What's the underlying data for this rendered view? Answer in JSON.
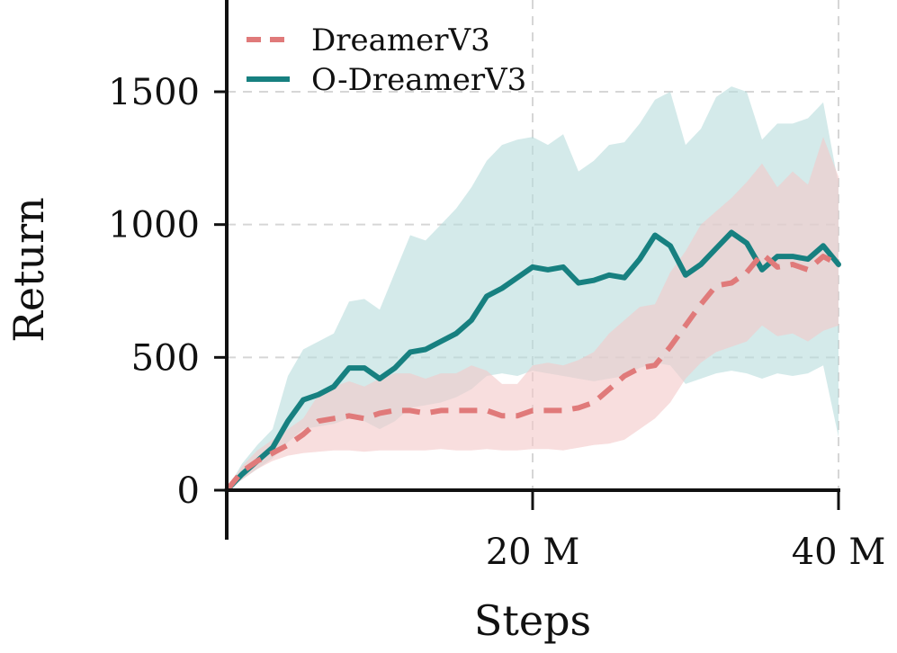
{
  "chart_data": {
    "type": "line",
    "title": "",
    "xlabel": "Steps",
    "ylabel": "Return",
    "xlim": [
      0,
      40
    ],
    "ylim": [
      -180,
      1830
    ],
    "x_unit": "M steps",
    "x_ticks": [
      {
        "value": 20,
        "label": "20 M"
      },
      {
        "value": 40,
        "label": "40 M"
      }
    ],
    "y_ticks": [
      {
        "value": 0,
        "label": "0"
      },
      {
        "value": 500,
        "label": "500"
      },
      {
        "value": 1000,
        "label": "1000"
      },
      {
        "value": 1500,
        "label": "1500"
      }
    ],
    "grid": true,
    "legend_position": "top-left",
    "series": [
      {
        "name": "DreamerV3",
        "color": "#e07a7a",
        "band_color": "#f4c8c8",
        "style": "dashed",
        "x": [
          0,
          1,
          2,
          3,
          4,
          5,
          6,
          7,
          8,
          9,
          10,
          11,
          12,
          13,
          14,
          15,
          16,
          17,
          18,
          19,
          20,
          21,
          22,
          23,
          24,
          25,
          26,
          27,
          28,
          29,
          30,
          31,
          32,
          33,
          34,
          35,
          36,
          37,
          38,
          39,
          40
        ],
        "mean": [
          0,
          70,
          110,
          140,
          170,
          210,
          260,
          270,
          280,
          270,
          290,
          300,
          300,
          290,
          300,
          300,
          300,
          300,
          280,
          280,
          300,
          300,
          300,
          310,
          330,
          380,
          430,
          460,
          470,
          540,
          620,
          700,
          770,
          780,
          820,
          890,
          840,
          850,
          830,
          880,
          850
        ],
        "lower": [
          0,
          40,
          80,
          110,
          130,
          140,
          145,
          150,
          150,
          145,
          150,
          150,
          150,
          150,
          155,
          150,
          150,
          155,
          150,
          150,
          155,
          155,
          150,
          160,
          170,
          175,
          190,
          230,
          270,
          330,
          420,
          480,
          520,
          540,
          560,
          620,
          580,
          590,
          560,
          600,
          620
        ],
        "upper": [
          0,
          90,
          150,
          190,
          230,
          270,
          360,
          390,
          410,
          390,
          420,
          440,
          440,
          420,
          440,
          440,
          470,
          450,
          400,
          400,
          470,
          480,
          470,
          490,
          520,
          590,
          640,
          690,
          700,
          820,
          900,
          1000,
          1050,
          1100,
          1160,
          1230,
          1140,
          1200,
          1150,
          1330,
          1180
        ]
      },
      {
        "name": "O-DreamerV3",
        "color": "#178080",
        "band_color": "#b8dcdc",
        "style": "solid",
        "x": [
          0,
          1,
          2,
          3,
          4,
          5,
          6,
          7,
          8,
          9,
          10,
          11,
          12,
          13,
          14,
          15,
          16,
          17,
          18,
          19,
          20,
          21,
          22,
          23,
          24,
          25,
          26,
          27,
          28,
          29,
          30,
          31,
          32,
          33,
          34,
          35,
          36,
          37,
          38,
          39,
          40
        ],
        "mean": [
          0,
          60,
          110,
          160,
          260,
          340,
          360,
          390,
          460,
          460,
          420,
          460,
          520,
          530,
          560,
          590,
          640,
          730,
          760,
          800,
          840,
          830,
          840,
          780,
          790,
          810,
          800,
          870,
          960,
          920,
          810,
          850,
          910,
          970,
          930,
          830,
          880,
          880,
          870,
          920,
          850
        ],
        "lower": [
          0,
          40,
          80,
          120,
          180,
          230,
          240,
          250,
          270,
          260,
          230,
          260,
          310,
          320,
          330,
          350,
          380,
          430,
          440,
          430,
          450,
          440,
          430,
          420,
          410,
          420,
          430,
          460,
          480,
          470,
          400,
          420,
          440,
          450,
          440,
          420,
          440,
          430,
          440,
          470,
          200
        ],
        "upper": [
          0,
          100,
          170,
          230,
          430,
          530,
          560,
          590,
          710,
          720,
          680,
          820,
          960,
          940,
          1000,
          1060,
          1140,
          1240,
          1300,
          1320,
          1330,
          1300,
          1340,
          1200,
          1240,
          1300,
          1310,
          1380,
          1470,
          1500,
          1300,
          1360,
          1480,
          1520,
          1500,
          1320,
          1380,
          1380,
          1400,
          1460,
          1150
        ]
      }
    ]
  }
}
